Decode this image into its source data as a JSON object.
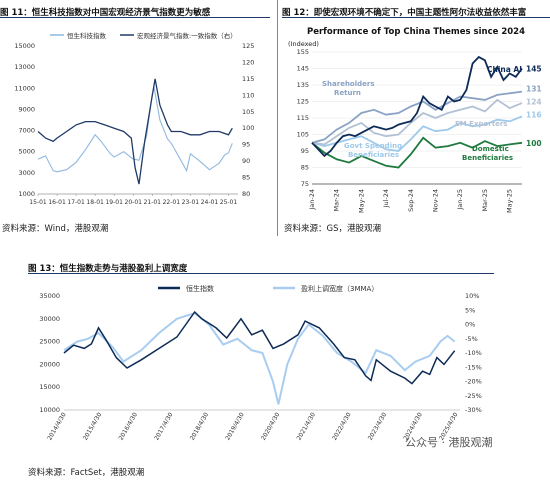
{
  "figures": [
    {
      "title": "图 11：恒生科技指数对中国宏观经济景气指数更为敏感",
      "source": "资料来源：Wind，港股观潮"
    },
    {
      "title": "图 12：即使宏观环境不确定下，中国主题性阿尔法收益依然丰富",
      "source": "资料来源：GS，港股观潮"
    },
    {
      "title": "图 13：恒生指数走势与港股盈利上调宽度",
      "source": "资料来源：FactSet，港股观潮"
    }
  ],
  "watermark": "公众号 · 港股观潮",
  "chart_data": [
    {
      "type": "line",
      "legend": [
        "恒生科技指数",
        "宏观经济景气指数:一致指数（右）"
      ],
      "x_ticks": [
        "15-01",
        "16-01",
        "17-01",
        "18-01",
        "19-01",
        "20-01",
        "21-01",
        "22-01",
        "23-01",
        "24-01",
        "25-01"
      ],
      "y_left_ticks": [
        "1000",
        "3000",
        "5000",
        "7000",
        "9000",
        "11000",
        "13000",
        "15000"
      ],
      "y_right_ticks": [
        "80",
        "85",
        "90",
        "95",
        "100",
        "105",
        "110",
        "115",
        "120",
        "125"
      ],
      "ylim_left": [
        1000,
        15000
      ],
      "ylim_right": [
        80,
        125
      ],
      "series": [
        {
          "name": "恒生科技指数",
          "axis": "left",
          "color": "#8fb8e0",
          "x": [
            2015.0,
            2015.4,
            2015.8,
            2016.0,
            2016.5,
            2017.0,
            2017.5,
            2018.0,
            2018.3,
            2018.8,
            2019.0,
            2019.5,
            2020.0,
            2020.3,
            2020.7,
            2021.0,
            2021.1,
            2021.4,
            2021.8,
            2022.0,
            2022.4,
            2022.8,
            2023.0,
            2023.5,
            2024.0,
            2024.5,
            2024.8,
            2025.0,
            2025.2
          ],
          "y": [
            4300,
            4600,
            3200,
            3100,
            3300,
            4000,
            5200,
            6600,
            6000,
            4800,
            4500,
            5000,
            4300,
            4200,
            6500,
            10500,
            11000,
            8000,
            6200,
            5800,
            4500,
            3200,
            4800,
            4100,
            3300,
            3900,
            4700,
            4900,
            5800
          ]
        },
        {
          "name": "宏观经济景气指数:一致指数（右）",
          "axis": "right",
          "color": "#1f3a68",
          "x": [
            2015.0,
            2015.4,
            2015.8,
            2016.0,
            2016.5,
            2017.0,
            2017.5,
            2018.0,
            2018.5,
            2019.0,
            2019.5,
            2019.9,
            2020.1,
            2020.3,
            2020.6,
            2021.0,
            2021.15,
            2021.4,
            2021.8,
            2022.0,
            2022.5,
            2023.0,
            2023.5,
            2024.0,
            2024.5,
            2025.0,
            2025.2
          ],
          "y": [
            99,
            97,
            96,
            97,
            99,
            101,
            102,
            102,
            101,
            100,
            99,
            97,
            88,
            83,
            96,
            110,
            115,
            107,
            101,
            99,
            99,
            98,
            98,
            99,
            99,
            98,
            100
          ]
        }
      ]
    },
    {
      "type": "line",
      "title": "Performance of Top China Themes since 2024",
      "ylabel": "(Indexed)",
      "x_ticks": [
        "Jan-24",
        "Mar-24",
        "May-24",
        "Jul-24",
        "Sep-24",
        "Nov-24",
        "Jan-25",
        "Mar-25",
        "May-25"
      ],
      "y_ticks": [
        "75",
        "85",
        "95",
        "105",
        "115",
        "125",
        "135",
        "145",
        "155"
      ],
      "ylim": [
        75,
        155
      ],
      "annotations": [
        "Shareholders Return",
        "China AI",
        "EM Exporters",
        "Govt Spending Beneficiaries",
        "Domestic Beneficiaries"
      ],
      "end_labels": [
        "145",
        "131",
        "124",
        "116",
        "100"
      ],
      "series": [
        {
          "name": "China AI",
          "color": "#0d2b57",
          "x": [
            0,
            0.5,
            1,
            1.5,
            2,
            2.5,
            3,
            3.5,
            4,
            4.5,
            5,
            5.5,
            6,
            6.5,
            7,
            7.5,
            8,
            8.5,
            9,
            9.5,
            10,
            10.5,
            11,
            11.5,
            12,
            12.5,
            13,
            13.5,
            14,
            14.5,
            15,
            15.5,
            16,
            16.5,
            17
          ],
          "y": [
            100,
            96,
            92,
            95,
            100,
            104,
            105,
            104,
            106,
            108,
            110,
            109,
            108,
            109,
            111,
            112,
            113,
            118,
            128,
            124,
            122,
            120,
            128,
            125,
            126,
            132,
            148,
            152,
            150,
            140,
            146,
            138,
            142,
            140,
            145
          ]
        },
        {
          "name": "Shareholders Return",
          "color": "#8aa2c4",
          "x": [
            0,
            1,
            2,
            3,
            4,
            5,
            6,
            7,
            8,
            9,
            10,
            11,
            12,
            13,
            14,
            15,
            16,
            17
          ],
          "y": [
            100,
            102,
            108,
            112,
            118,
            120,
            117,
            118,
            122,
            125,
            120,
            124,
            128,
            127,
            126,
            129,
            130,
            131
          ]
        },
        {
          "name": "EM Exporters",
          "color": "#b3c1d6",
          "x": [
            0,
            1,
            2,
            3,
            4,
            5,
            6,
            7,
            8,
            9,
            10,
            11,
            12,
            13,
            14,
            15,
            16,
            17
          ],
          "y": [
            100,
            99,
            104,
            109,
            112,
            106,
            104,
            105,
            112,
            118,
            115,
            118,
            120,
            122,
            119,
            126,
            121,
            124
          ]
        },
        {
          "name": "Govt Spending Beneficiaries",
          "color": "#9ec9ea",
          "x": [
            0,
            1,
            2,
            3,
            4,
            5,
            6,
            7,
            8,
            9,
            10,
            11,
            12,
            13,
            14,
            15,
            16,
            17
          ],
          "y": [
            100,
            98,
            100,
            102,
            104,
            100,
            96,
            95,
            102,
            110,
            107,
            108,
            112,
            110,
            111,
            114,
            113,
            116
          ]
        },
        {
          "name": "Domestic Beneficiaries",
          "color": "#1f7a3e",
          "x": [
            0,
            1,
            2,
            3,
            4,
            5,
            6,
            7,
            8,
            9,
            10,
            11,
            12,
            13,
            14,
            15,
            16,
            17
          ],
          "y": [
            100,
            94,
            90,
            88,
            92,
            89,
            86,
            85,
            93,
            103,
            97,
            98,
            100,
            97,
            101,
            98,
            99,
            100
          ]
        }
      ]
    },
    {
      "type": "line",
      "legend": [
        "恒生指数",
        "盈利上调宽度（3MMA）"
      ],
      "x_ticks": [
        "2014/4/30",
        "2015/4/30",
        "2016/4/30",
        "2017/4/30",
        "2018/4/30",
        "2019/4/30",
        "2020/4/30",
        "2021/4/30",
        "2022/4/30",
        "2023/4/30",
        "2024/4/30",
        "2025/4/30"
      ],
      "y_left_ticks": [
        "10000",
        "15000",
        "20000",
        "25000",
        "30000",
        "35000"
      ],
      "y_right_ticks": [
        "-30%",
        "-25%",
        "-20%",
        "-15%",
        "-10%",
        "-5%",
        "0%",
        "5%",
        "10%"
      ],
      "ylim_left": [
        10000,
        35000
      ],
      "ylim_right": [
        -30,
        10
      ],
      "series": [
        {
          "name": "恒生指数",
          "axis": "left",
          "color": "#0d2b57",
          "x": [
            2014.33,
            2014.6,
            2014.9,
            2015.1,
            2015.3,
            2015.5,
            2015.8,
            2016.1,
            2016.5,
            2017.0,
            2017.5,
            2018.0,
            2018.2,
            2018.6,
            2018.9,
            2019.3,
            2019.6,
            2019.9,
            2020.2,
            2020.5,
            2020.9,
            2021.1,
            2021.5,
            2021.9,
            2022.2,
            2022.5,
            2022.8,
            2022.95,
            2023.1,
            2023.5,
            2023.9,
            2024.1,
            2024.4,
            2024.6,
            2024.8,
            2025.0,
            2025.3
          ],
          "y": [
            22500,
            24200,
            23500,
            24500,
            28000,
            25500,
            21500,
            19200,
            21000,
            23500,
            26000,
            31500,
            30000,
            28000,
            25800,
            30000,
            26500,
            27500,
            23500,
            24500,
            26500,
            29500,
            28000,
            24500,
            21500,
            21000,
            17500,
            16500,
            21000,
            18500,
            17000,
            15800,
            18500,
            17800,
            21500,
            20000,
            23000
          ]
        },
        {
          "name": "盈利上调宽度（3MMA）",
          "axis": "right",
          "color": "#a9cdf0",
          "x": [
            2014.33,
            2014.7,
            2015.0,
            2015.3,
            2015.7,
            2016.0,
            2016.5,
            2017.0,
            2017.5,
            2018.0,
            2018.4,
            2018.8,
            2019.2,
            2019.6,
            2019.9,
            2020.2,
            2020.35,
            2020.6,
            2020.9,
            2021.2,
            2021.6,
            2022.0,
            2022.4,
            2022.8,
            2023.1,
            2023.5,
            2023.9,
            2024.2,
            2024.6,
            2024.9,
            2025.1,
            2025.3
          ],
          "y": [
            -9,
            -6,
            -5,
            -3,
            -8,
            -13,
            -9,
            -3,
            2,
            4,
            0,
            -7,
            -5,
            -9,
            -10,
            -20,
            -28,
            -14,
            -5,
            0,
            -4,
            -10,
            -13,
            -17,
            -9,
            -11,
            -16,
            -13,
            -11,
            -6,
            -4,
            -6
          ]
        }
      ]
    }
  ]
}
